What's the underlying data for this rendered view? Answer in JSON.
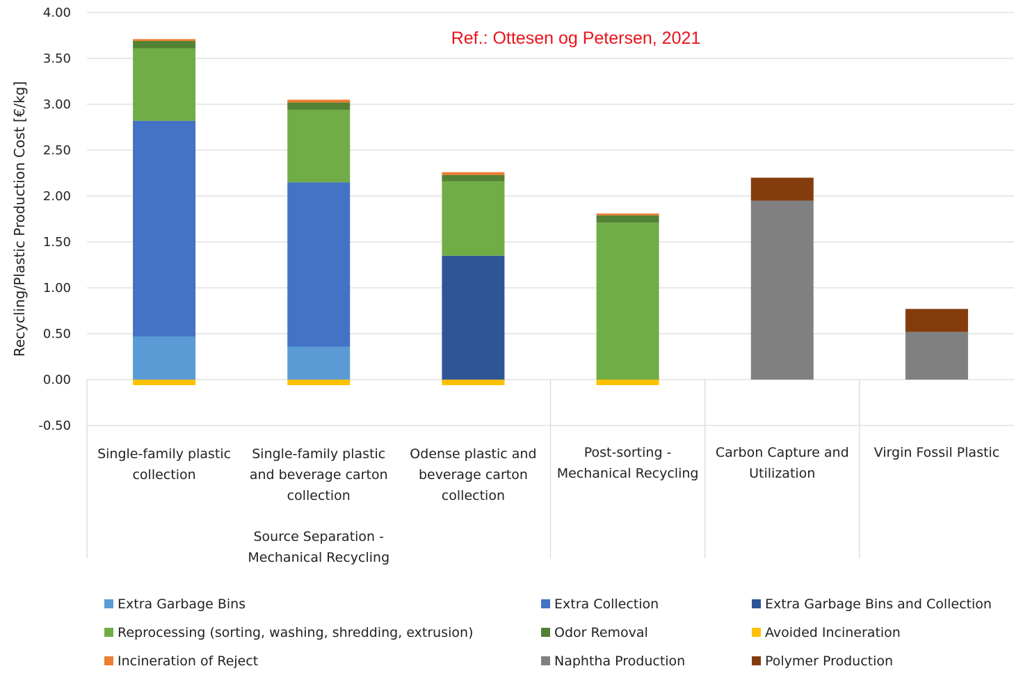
{
  "chart_data": {
    "type": "bar",
    "stacked": true,
    "title": "",
    "ylabel": "Recycling/Plastic Production Cost [€/kg]",
    "xlabel": "",
    "ylim": [
      -0.5,
      4.0
    ],
    "yticks": [
      "4.00",
      "3.50",
      "3.00",
      "2.50",
      "2.00",
      "1.50",
      "1.00",
      "0.50",
      "0.00",
      "-0.50"
    ],
    "ytick_values": [
      4.0,
      3.5,
      3.0,
      2.5,
      2.0,
      1.5,
      1.0,
      0.5,
      0.0,
      -0.5
    ],
    "grid": true,
    "annotation": "Ref.: Ottesen og Petersen, 2021",
    "categories": [
      [
        "Single-family plastic",
        "collection"
      ],
      [
        "Single-family plastic",
        "and beverage carton",
        "collection"
      ],
      [
        "Odense plastic and",
        "beverage carton",
        "collection"
      ],
      [
        "Post-sorting -",
        "Mechanical Recycling"
      ],
      [
        "Carbon Capture and",
        "Utilization"
      ],
      [
        "Virgin Fossil Plastic"
      ]
    ],
    "group_label": [
      "Source Separation -",
      "Mechanical Recycling"
    ],
    "series": [
      {
        "name": "Extra Garbage Bins",
        "color": "#5b9bd5",
        "values": [
          0.47,
          0.36,
          0,
          0,
          0,
          0
        ]
      },
      {
        "name": "Extra Collection",
        "color": "#4472c4",
        "values": [
          2.35,
          1.79,
          0,
          0,
          0,
          0
        ]
      },
      {
        "name": "Extra Garbage Bins and Collection",
        "color": "#2f5597",
        "values": [
          0,
          0,
          1.35,
          0,
          0,
          0
        ]
      },
      {
        "name": "Reprocessing (sorting, washing, shredding, extrusion)",
        "color": "#70ad47",
        "values": [
          0.79,
          0.79,
          0.81,
          1.71,
          0,
          0
        ]
      },
      {
        "name": "Odor Removal",
        "color": "#548235",
        "values": [
          0.08,
          0.08,
          0.07,
          0.08,
          0,
          0
        ]
      },
      {
        "name": "Avoided Incineration",
        "color": "#ffc000",
        "values": [
          -0.06,
          -0.06,
          -0.06,
          -0.06,
          0,
          0
        ]
      },
      {
        "name": "Incineration of Reject",
        "color": "#ed7d31",
        "values": [
          0.02,
          0.03,
          0.03,
          0.02,
          0,
          0
        ]
      },
      {
        "name": "Naphtha Production",
        "color": "#808080",
        "values": [
          0,
          0,
          0,
          0,
          1.95,
          0.52
        ]
      },
      {
        "name": "Polymer Production",
        "color": "#843c0c",
        "values": [
          0,
          0,
          0,
          0,
          0.25,
          0.25
        ]
      }
    ],
    "legend_position": "bottom"
  }
}
